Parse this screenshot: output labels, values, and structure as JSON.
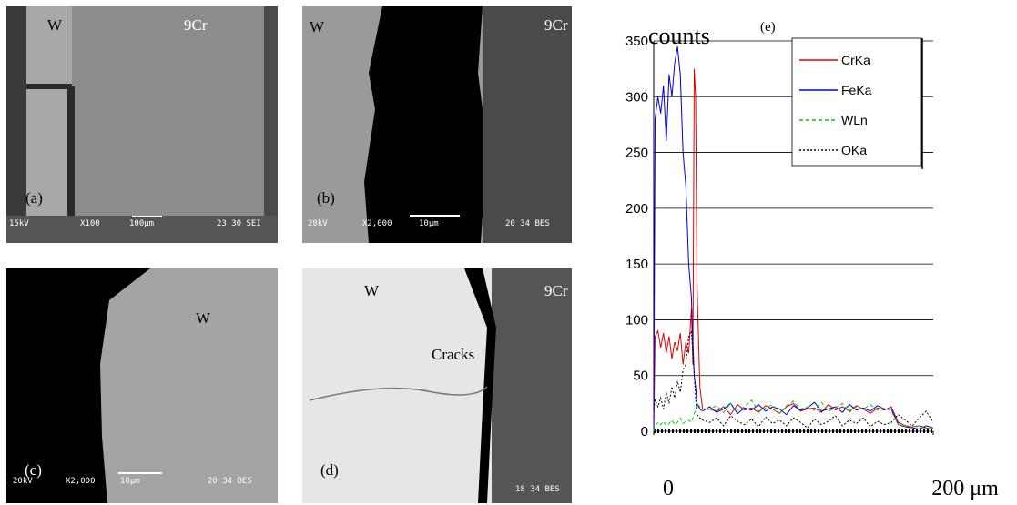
{
  "panels": [
    {
      "label": "(a)",
      "texts": [
        "W",
        "9Cr"
      ],
      "footer": [
        "15kV",
        "X100",
        "100μm",
        "23 30 SEI"
      ]
    },
    {
      "label": "(b)",
      "texts": [
        "W",
        "9Cr"
      ],
      "footer": [
        "20kV",
        "X2,000",
        "10μm",
        "20 34 BES"
      ]
    },
    {
      "label": "(c)",
      "texts": [
        "W"
      ],
      "footer": [
        "20kV",
        "X2,000",
        "10μm",
        "20 34 BES"
      ]
    },
    {
      "label": "(d)",
      "texts": [
        "W",
        "9Cr",
        "Cracks"
      ],
      "footer": [
        "18 34 BES"
      ]
    }
  ],
  "chart_data": {
    "type": "line",
    "title": "(e)",
    "ylabel": "counts",
    "x": [
      0,
      1,
      3,
      5,
      7,
      9,
      11,
      13,
      15,
      17,
      19,
      21,
      23,
      25,
      27,
      28,
      29,
      30,
      31,
      33,
      35,
      40,
      45,
      50,
      55,
      60,
      65,
      70,
      75,
      80,
      85,
      90,
      95,
      100,
      105,
      110,
      115,
      120,
      125,
      130,
      135,
      140,
      145,
      150,
      155,
      160,
      165,
      170,
      175,
      180,
      185,
      190,
      195,
      200
    ],
    "xlim": [
      0,
      200
    ],
    "xticks": [
      {
        "value": 0,
        "label": "0"
      },
      {
        "value": 200,
        "label": "200 μm"
      }
    ],
    "ylim": [
      0,
      350
    ],
    "yticks": [
      0,
      50,
      100,
      150,
      200,
      250,
      300,
      350
    ],
    "grid": true,
    "legend": "upper right",
    "series": [
      {
        "name": "CrKa",
        "color": "#e00000",
        "dash": "solid",
        "values": [
          0,
          85,
          90,
          75,
          88,
          70,
          85,
          65,
          80,
          72,
          88,
          60,
          80,
          70,
          110,
          60,
          325,
          300,
          130,
          40,
          20,
          20,
          18,
          22,
          15,
          24,
          19,
          21,
          17,
          23,
          20,
          16,
          22,
          25,
          18,
          20,
          21,
          17,
          24,
          19,
          22,
          18,
          23,
          20,
          16,
          21,
          19,
          22,
          8,
          5,
          4,
          5,
          3,
          2
        ]
      },
      {
        "name": "FeKa",
        "color": "#0000e0",
        "dash": "solid",
        "values": [
          0,
          280,
          300,
          285,
          310,
          260,
          320,
          300,
          330,
          345,
          320,
          250,
          220,
          150,
          120,
          80,
          50,
          40,
          25,
          20,
          18,
          22,
          17,
          20,
          25,
          16,
          21,
          19,
          24,
          18,
          22,
          20,
          15,
          23,
          19,
          21,
          26,
          18,
          20,
          22,
          17,
          24,
          19,
          21,
          18,
          23,
          20,
          20,
          6,
          4,
          3,
          2,
          5,
          3
        ]
      },
      {
        "name": "WLn",
        "color": "#00cc00",
        "dash": "dashed",
        "values": [
          0,
          5,
          8,
          6,
          9,
          5,
          7,
          10,
          6,
          8,
          12,
          7,
          9,
          10,
          8,
          12,
          15,
          20,
          25,
          22,
          18,
          20,
          23,
          17,
          25,
          19,
          22,
          28,
          18,
          21,
          24,
          16,
          23,
          27,
          20,
          22,
          19,
          26,
          18,
          21,
          25,
          17,
          22,
          20,
          24,
          19,
          21,
          18,
          6,
          4,
          3,
          5,
          2,
          3
        ]
      },
      {
        "name": "OKa",
        "color": "#000000",
        "dash": "dotted",
        "values": [
          20,
          28,
          22,
          30,
          20,
          35,
          25,
          40,
          30,
          45,
          35,
          55,
          60,
          85,
          90,
          70,
          50,
          30,
          15,
          12,
          10,
          8,
          12,
          5,
          14,
          9,
          6,
          11,
          4,
          13,
          7,
          10,
          5,
          12,
          8,
          3,
          11,
          6,
          9,
          14,
          5,
          10,
          7,
          12,
          4,
          9,
          6,
          8,
          15,
          10,
          5,
          12,
          18,
          8
        ]
      }
    ]
  }
}
